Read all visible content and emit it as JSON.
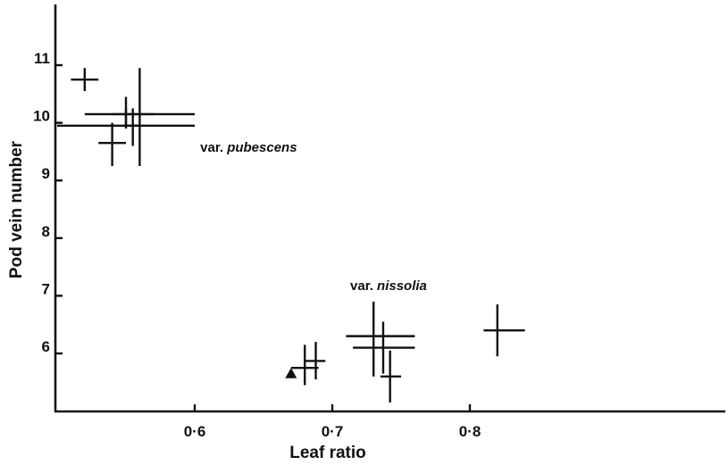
{
  "chart_data": {
    "type": "scatter",
    "title": "",
    "xlabel": "Leaf ratio",
    "ylabel": "Pod vein number",
    "xlim": [
      0.5,
      0.9
    ],
    "ylim": [
      5,
      12
    ],
    "x_ticks": [
      {
        "value": 0.6,
        "label": "0·6"
      },
      {
        "value": 0.7,
        "label": "0·7"
      },
      {
        "value": 0.8,
        "label": "0·8"
      }
    ],
    "y_ticks": [
      {
        "value": 6,
        "label": "6"
      },
      {
        "value": 7,
        "label": "7"
      },
      {
        "value": 8,
        "label": "8"
      },
      {
        "value": 9,
        "label": "9"
      },
      {
        "value": 10,
        "label": "10"
      },
      {
        "value": 11,
        "label": "11"
      }
    ],
    "grid": false,
    "annotations": [
      {
        "prefix": "var. ",
        "name": "pubescens",
        "x": 0.604,
        "y": 9.5
      },
      {
        "prefix": "var. ",
        "name": "nissolia",
        "x": 0.713,
        "y": 7.1
      }
    ],
    "points": [
      {
        "group": "pubescens",
        "x": 0.52,
        "y": 10.75,
        "x_err": [
          0.51,
          0.53
        ],
        "y_err": [
          10.55,
          10.95
        ]
      },
      {
        "group": "pubescens",
        "x": 0.55,
        "y": 10.15,
        "x_err": [
          0.52,
          0.6
        ],
        "y_err": [
          9.95,
          10.25
        ]
      },
      {
        "group": "pubescens",
        "x": 0.54,
        "y": 9.65,
        "x_err": [
          0.53,
          0.55
        ],
        "y_err": [
          9.25,
          10.0
        ]
      },
      {
        "group": "pubescens",
        "x": 0.55,
        "y": 10.15,
        "x_err": [
          0.54,
          0.57
        ],
        "y_err": [
          9.9,
          10.45
        ]
      },
      {
        "group": "pubescens",
        "x": 0.56,
        "y": 9.95,
        "x_err": [
          0.5,
          0.6
        ],
        "y_err": [
          9.25,
          10.95
        ]
      },
      {
        "group": "pubescens",
        "x": 0.555,
        "y": 9.95,
        "x_err": [
          0.55,
          0.56
        ],
        "y_err": [
          9.6,
          10.25
        ]
      },
      {
        "group": "nissolia",
        "x": 0.68,
        "y": 5.75,
        "x_err": [
          0.67,
          0.69
        ],
        "y_err": [
          5.45,
          6.15
        ]
      },
      {
        "group": "nissolia",
        "x": 0.688,
        "y": 5.87,
        "x_err": [
          0.68,
          0.695
        ],
        "y_err": [
          5.55,
          6.2
        ]
      },
      {
        "group": "nissolia",
        "x": 0.73,
        "y": 6.3,
        "x_err": [
          0.71,
          0.76
        ],
        "y_err": [
          5.6,
          6.9
        ]
      },
      {
        "group": "nissolia",
        "x": 0.737,
        "y": 6.1,
        "x_err": [
          0.715,
          0.76
        ],
        "y_err": [
          5.65,
          6.55
        ]
      },
      {
        "group": "nissolia",
        "x": 0.742,
        "y": 5.6,
        "x_err": [
          0.735,
          0.75
        ],
        "y_err": [
          5.15,
          6.05
        ]
      },
      {
        "group": "nissolia",
        "x": 0.82,
        "y": 6.4,
        "x_err": [
          0.81,
          0.84
        ],
        "y_err": [
          5.95,
          6.85
        ]
      }
    ],
    "markers": [
      {
        "shape": "triangle",
        "x": 0.67,
        "y": 5.65
      }
    ]
  }
}
